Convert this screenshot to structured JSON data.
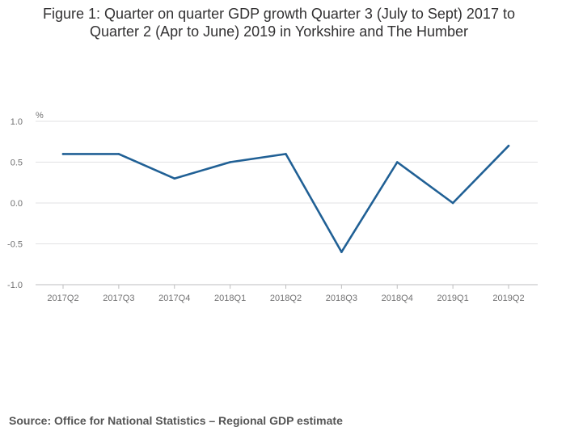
{
  "title_lines": [
    "Figure 1: Quarter on quarter GDP growth Quarter 3 (July to Sept) 2017 to",
    "Quarter 2 (Apr to June) 2019 in Yorkshire and The Humber"
  ],
  "source": "Source: Office for National Statistics – Regional GDP estimate",
  "chart_data": {
    "type": "line",
    "title": "Figure 1: Quarter on quarter GDP growth Quarter 3 (July to Sept) 2017 to Quarter 2 (Apr to June) 2019 in Yorkshire and The Humber",
    "ylabel": "%",
    "xlabel": "",
    "categories": [
      "2017Q2",
      "2017Q3",
      "2017Q4",
      "2018Q1",
      "2018Q2",
      "2018Q3",
      "2018Q4",
      "2019Q1",
      "2019Q2"
    ],
    "series": [
      {
        "values": [
          0.6,
          0.6,
          0.3,
          0.5,
          0.6,
          -0.6,
          0.5,
          0.0,
          0.7
        ]
      }
    ],
    "ylim": [
      -1.0,
      1.0
    ],
    "yticks": [
      1.0,
      0.5,
      0.0,
      -0.5,
      -1.0
    ],
    "ytick_labels": [
      "1.0",
      "0.5",
      "0.0",
      "-0.5",
      "-1.0"
    ],
    "grid": true,
    "line_color": "#206095",
    "grid_color": "#e2e2e3"
  }
}
